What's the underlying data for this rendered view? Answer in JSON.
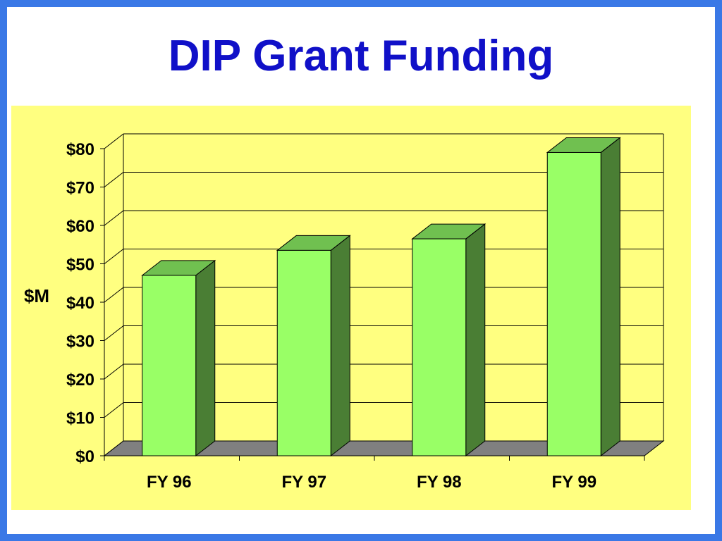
{
  "slide": {
    "title": "DIP Grant Funding",
    "border_color": "#3a78e6",
    "title_color": "#1010c8"
  },
  "chart_data": {
    "type": "bar",
    "style": "3d-column",
    "categories": [
      "FY 96",
      "FY 97",
      "FY 98",
      "FY 99"
    ],
    "values": [
      47,
      53.5,
      56.5,
      79
    ],
    "ylabel": "$M",
    "xlabel": "",
    "ylim": [
      0,
      80
    ],
    "yticks": [
      0,
      10,
      20,
      30,
      40,
      50,
      60,
      70,
      80
    ],
    "ytick_labels": [
      "$0",
      "$10",
      "$20",
      "$30",
      "$40",
      "$50",
      "$60",
      "$70",
      "$80"
    ],
    "grid": true,
    "legend": "none",
    "colors": {
      "plot_background": "#ffff80",
      "bar_front": "#99ff66",
      "bar_top": "#70c050",
      "bar_side": "#4a7e34",
      "floor": "#808080",
      "gridline": "#000000"
    }
  }
}
